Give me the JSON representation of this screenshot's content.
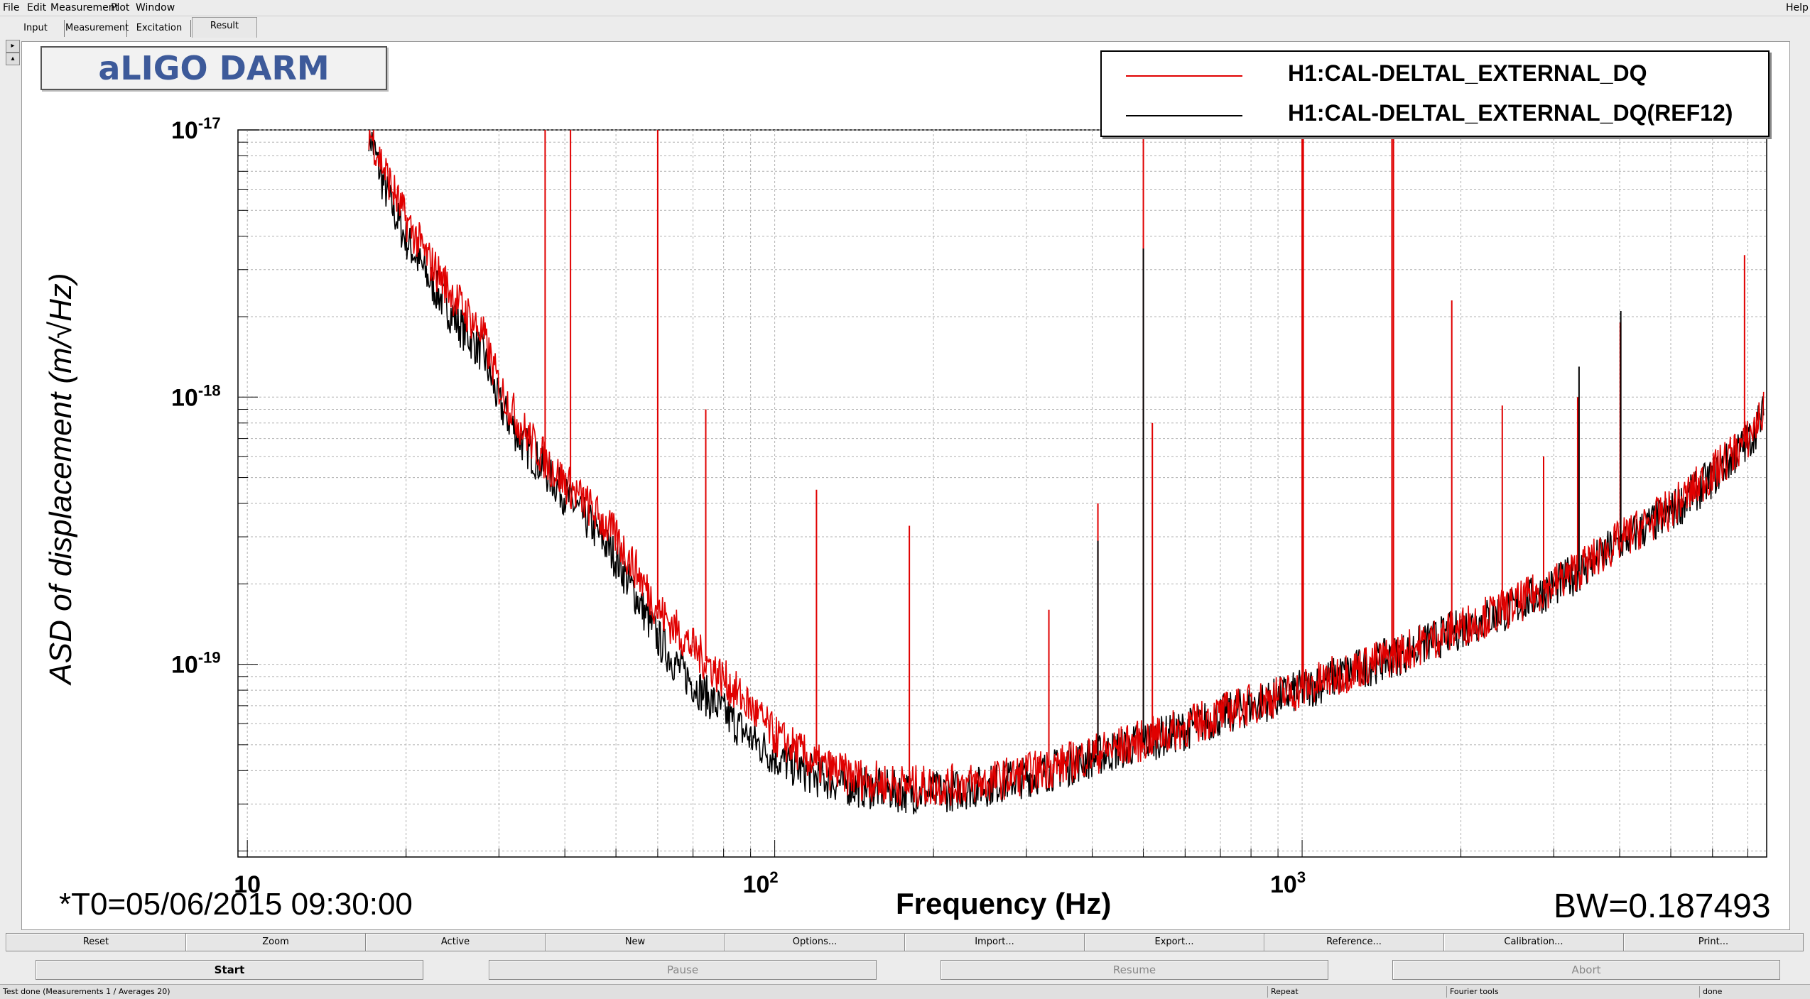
{
  "menubar": {
    "items": [
      {
        "label": "File"
      },
      {
        "label": "Edit"
      },
      {
        "label": "Measurement"
      },
      {
        "label": "Plot"
      },
      {
        "label": "Window"
      }
    ],
    "help": "Help"
  },
  "tabs": [
    {
      "label": "Input"
    },
    {
      "label": "Measurement"
    },
    {
      "label": "Excitation"
    },
    {
      "label": "Result",
      "active": true
    }
  ],
  "plot": {
    "title": "aLIGO DARM",
    "legend": [
      {
        "label": "H1:CAL-DELTAL_EXTERNAL_DQ",
        "color": "#e00000"
      },
      {
        "label": "H1:CAL-DELTAL_EXTERNAL_DQ(REF12)",
        "color": "#000000"
      }
    ],
    "ylabel": "ASD of displacement (m/√Hz)",
    "xlabel": "Frequency (Hz)",
    "t0": "*T0=05/06/2015 09:30:00",
    "bw": "BW=0.187493",
    "x_ticks": [
      {
        "base": "10",
        "exp": "",
        "value": 10
      },
      {
        "base": "10",
        "exp": "2",
        "value": 100
      },
      {
        "base": "10",
        "exp": "3",
        "value": 1000
      }
    ],
    "y_ticks": [
      {
        "base": "10",
        "exp": "-17",
        "value": 1e-17
      },
      {
        "base": "10",
        "exp": "-18",
        "value": 1e-18
      },
      {
        "base": "10",
        "exp": "-19",
        "value": 1e-19
      }
    ]
  },
  "chart_data": {
    "type": "line",
    "title": "aLIGO DARM",
    "xlabel": "Frequency (Hz)",
    "ylabel": "ASD of displacement (m/√Hz)",
    "x_scale": "log",
    "y_scale": "log",
    "xlim": [
      9.6,
      7600
    ],
    "ylim": [
      1.9e-20,
      1e-17
    ],
    "grid": true,
    "legend_position": "top-right",
    "series": [
      {
        "name": "H1:CAL-DELTAL_EXTERNAL_DQ",
        "color": "#e00000",
        "x": [
          17,
          18,
          19,
          20,
          22,
          25,
          28,
          30,
          33,
          37,
          40,
          45,
          50,
          55,
          60,
          65,
          70,
          80,
          90,
          100,
          110,
          120,
          140,
          160,
          180,
          200,
          250,
          300,
          350,
          400,
          500,
          600,
          700,
          800,
          1000,
          1200,
          1500,
          2000,
          2500,
          3000,
          3500,
          4000,
          5000,
          6000,
          7000,
          7500
        ],
        "y": [
          1e-17,
          7.5e-18,
          5.8e-18,
          4.6e-18,
          3.3e-18,
          2.3e-18,
          1.7e-18,
          1.1e-18,
          7.8e-19,
          5.7e-19,
          4.8e-19,
          3.8e-19,
          3e-19,
          2.2e-19,
          1.6e-19,
          1.35e-19,
          1.15e-19,
          8.8e-20,
          6.9e-20,
          5.4e-20,
          4.8e-20,
          4.2e-20,
          3.8e-20,
          3.6e-20,
          3.5e-20,
          3.5e-20,
          3.6e-20,
          3.9e-20,
          4.2e-20,
          4.6e-20,
          5.2e-20,
          5.8e-20,
          6.5e-20,
          7.1e-20,
          8.1e-20,
          9.3e-20,
          1.08e-19,
          1.38e-19,
          1.65e-19,
          2e-19,
          2.4e-19,
          2.9e-19,
          3.8e-19,
          5.2e-19,
          7e-19,
          8.8e-19
        ]
      },
      {
        "name": "H1:CAL-DELTAL_EXTERNAL_DQ(REF12)",
        "color": "#000000",
        "x": [
          17,
          18,
          19,
          20,
          22,
          25,
          28,
          30,
          33,
          37,
          40,
          45,
          50,
          55,
          60,
          65,
          70,
          80,
          90,
          100,
          110,
          120,
          140,
          160,
          180,
          200,
          250,
          300,
          350,
          400,
          500,
          600,
          700,
          800,
          1000,
          1200,
          1500,
          2000,
          2500,
          3000,
          3500,
          4000,
          5000,
          6000,
          7000,
          7500
        ],
        "y": [
          1e-17,
          6.5e-18,
          4.9e-18,
          3.9e-18,
          2.8e-18,
          1.9e-18,
          1.45e-18,
          9.5e-19,
          6.9e-19,
          5.2e-19,
          4.3e-19,
          3.3e-19,
          2.5e-19,
          1.75e-19,
          1.25e-19,
          1e-19,
          8.5e-20,
          6.6e-20,
          5.3e-20,
          4.5e-20,
          4.1e-20,
          3.8e-20,
          3.5e-20,
          3.4e-20,
          3.3e-20,
          3.3e-20,
          3.5e-20,
          3.8e-20,
          4.1e-20,
          4.5e-20,
          5.1e-20,
          5.7e-20,
          6.4e-20,
          7e-20,
          8e-20,
          9.2e-20,
          1.07e-19,
          1.36e-19,
          1.62e-19,
          1.95e-19,
          2.35e-19,
          2.85e-19,
          3.7e-19,
          5e-19,
          6.8e-19,
          8.6e-19
        ]
      }
    ],
    "lines": [
      {
        "series": 0,
        "x": 36.7,
        "y": 1e-17
      },
      {
        "series": 0,
        "x": 41,
        "y": 1e-17
      },
      {
        "series": 0,
        "x": 60,
        "y": 1e-17
      },
      {
        "series": 0,
        "x": 74,
        "y": 9e-19
      },
      {
        "series": 0,
        "x": 120,
        "y": 4.5e-19
      },
      {
        "series": 0,
        "x": 180,
        "y": 3.3e-19
      },
      {
        "series": 0,
        "x": 331,
        "y": 1.6e-19
      },
      {
        "series": 0,
        "x": 410,
        "y": 4e-19
      },
      {
        "series": 0,
        "x": 500,
        "y": 1e-17
      },
      {
        "series": 0,
        "x": 520,
        "y": 8e-19
      },
      {
        "series": 0,
        "x": 1000,
        "y": 1e-17
      },
      {
        "series": 0,
        "x": 1005,
        "y": 1e-17
      },
      {
        "series": 0,
        "x": 1480,
        "y": 1e-17
      },
      {
        "series": 0,
        "x": 1490,
        "y": 1e-17
      },
      {
        "series": 0,
        "x": 1922,
        "y": 2.3e-18
      },
      {
        "series": 0,
        "x": 2396,
        "y": 9.3e-19
      },
      {
        "series": 0,
        "x": 2870,
        "y": 6e-19
      },
      {
        "series": 0,
        "x": 3330,
        "y": 1e-18
      },
      {
        "series": 0,
        "x": 4010,
        "y": 1.9e-18
      },
      {
        "series": 0,
        "x": 6900,
        "y": 3.4e-18
      },
      {
        "series": 1,
        "x": 4020,
        "y": 2.1e-18
      },
      {
        "series": 1,
        "x": 3350,
        "y": 1.3e-18
      },
      {
        "series": 1,
        "x": 500,
        "y": 3.6e-18
      },
      {
        "series": 1,
        "x": 410,
        "y": 2.9e-19
      }
    ]
  },
  "toolbar": {
    "buttons": [
      {
        "label": "Reset"
      },
      {
        "label": "Zoom"
      },
      {
        "label": "Active"
      },
      {
        "label": "New"
      },
      {
        "label": "Options..."
      },
      {
        "label": "Import..."
      },
      {
        "label": "Export..."
      },
      {
        "label": "Reference..."
      },
      {
        "label": "Calibration..."
      },
      {
        "label": "Print..."
      }
    ]
  },
  "runbar": {
    "start": "Start",
    "pause": "Pause",
    "resume": "Resume",
    "abort": "Abort"
  },
  "statusbar": {
    "message": "Test done (Measurements 1 / Averages 20)",
    "repeat": "Repeat",
    "tools": "Fourier tools",
    "state": "done"
  }
}
